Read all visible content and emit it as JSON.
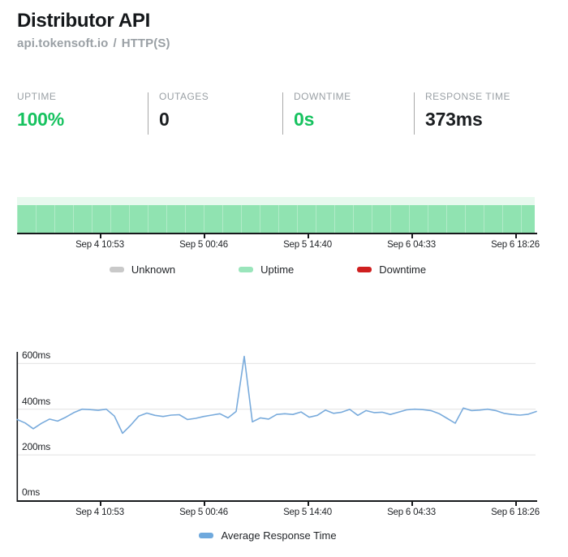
{
  "header": {
    "title": "Distributor API",
    "host": "api.tokensoft.io",
    "separator": "/",
    "protocol": "HTTP(S)"
  },
  "stats": {
    "items": [
      {
        "label": "UPTIME",
        "value": "100%",
        "value_color": "#16c25f"
      },
      {
        "label": "OUTAGES",
        "value": "0",
        "value_color": "#1b1e21"
      },
      {
        "label": "DOWNTIME",
        "value": "0s",
        "value_color": "#16c25f"
      },
      {
        "label": "RESPONSE TIME",
        "value": "373ms",
        "value_color": "#1b1e21"
      }
    ]
  },
  "timeline_labels": [
    "Sep 4 10:53",
    "Sep 5 00:46",
    "Sep 5 14:40",
    "Sep 6 04:33",
    "Sep 6 18:26"
  ],
  "uptime_legend": [
    {
      "label": "Unknown",
      "color": "#c9c9c9"
    },
    {
      "label": "Uptime",
      "color": "#9ae5bb"
    },
    {
      "label": "Downtime",
      "color": "#cf1f1f"
    }
  ],
  "response_legend": [
    {
      "label": "Average Response Time",
      "color": "#6fa9dd"
    }
  ],
  "colors": {
    "accent_green": "#16c25f",
    "bar_green": "#90e3b1",
    "line_blue": "#79abdc",
    "axis_black": "#17191c",
    "gridline_gray": "#e2e2e2"
  },
  "chart_data": [
    {
      "type": "bar",
      "name": "uptime-status-timeline",
      "x_ticks": [
        "Sep 4 10:53",
        "Sep 5 00:46",
        "Sep 5 14:40",
        "Sep 6 04:33",
        "Sep 6 18:26"
      ],
      "legend": [
        "Unknown",
        "Uptime",
        "Downtime"
      ],
      "series": [
        {
          "name": "Uptime",
          "status": "up",
          "span_percent": 100
        }
      ],
      "note": "single uninterrupted green uptime band across the entire displayed window"
    },
    {
      "type": "line",
      "name": "average-response-time",
      "title": "Average Response Time",
      "unit": "ms",
      "ylim": [
        0,
        600
      ],
      "y_tick_labels": [
        "600ms",
        "400ms",
        "200ms",
        "0ms"
      ],
      "x_ticks": [
        "Sep 4 10:53",
        "Sep 5 00:46",
        "Sep 5 14:40",
        "Sep 6 04:33",
        "Sep 6 18:26"
      ],
      "grid": true,
      "legend_position": "bottom",
      "series": [
        {
          "name": "Average Response Time",
          "unit": "ms",
          "x_note": "65 evenly spaced samples across the displayed time window",
          "values": [
            355,
            340,
            315,
            338,
            357,
            348,
            365,
            385,
            400,
            398,
            395,
            400,
            370,
            295,
            330,
            370,
            383,
            373,
            368,
            374,
            376,
            355,
            360,
            368,
            374,
            380,
            362,
            390,
            630,
            345,
            362,
            357,
            377,
            380,
            377,
            388,
            365,
            373,
            396,
            382,
            387,
            399,
            373,
            394,
            385,
            387,
            377,
            387,
            397,
            400,
            398,
            394,
            381,
            360,
            339,
            405,
            394,
            396,
            400,
            394,
            382,
            377,
            374,
            378,
            390
          ]
        }
      ]
    }
  ]
}
